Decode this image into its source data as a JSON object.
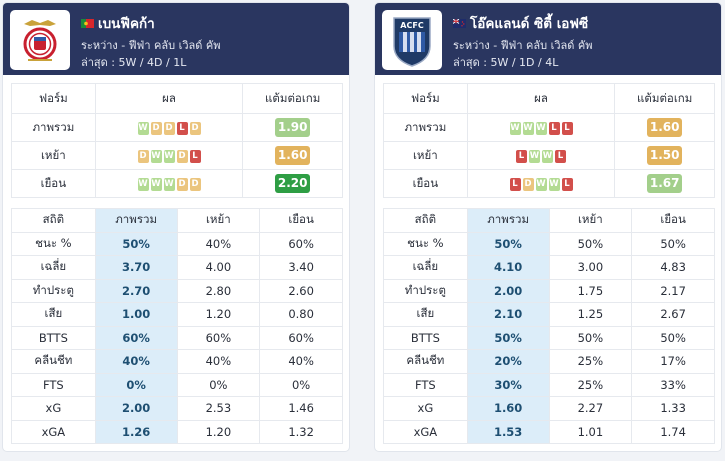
{
  "teams": [
    {
      "name": "เบนฟีคก้า",
      "flag": "portugal-flag",
      "competition": "ระหว่าง - ฟีฟ่า คลับ เวิลด์ คัพ",
      "recent": "ล่าสุด : 5W / 4D / 1L",
      "form_header": [
        "ฟอร์ม",
        "ผล",
        "แต้มต่อเกม"
      ],
      "form_rows": [
        {
          "label": "ภาพรวม",
          "results": [
            "W",
            "D",
            "D",
            "L",
            "D"
          ],
          "ppg": "1.90",
          "ppg_color": "#a3cf8b"
        },
        {
          "label": "เหย้า",
          "results": [
            "D",
            "W",
            "W",
            "D",
            "L"
          ],
          "ppg": "1.60",
          "ppg_color": "#e2b35d"
        },
        {
          "label": "เยือน",
          "results": [
            "W",
            "W",
            "W",
            "D",
            "D"
          ],
          "ppg": "2.20",
          "ppg_color": "#2e9e44"
        }
      ],
      "stats_header": [
        "สถิติ",
        "ภาพรวม",
        "เหย้า",
        "เยือน"
      ],
      "stats": [
        {
          "label": "ชนะ %",
          "overall": "50%",
          "home": "40%",
          "away": "60%"
        },
        {
          "label": "เฉลี่ย",
          "overall": "3.70",
          "home": "4.00",
          "away": "3.40"
        },
        {
          "label": "ทำประตู",
          "overall": "2.70",
          "home": "2.80",
          "away": "2.60"
        },
        {
          "label": "เสีย",
          "overall": "1.00",
          "home": "1.20",
          "away": "0.80"
        },
        {
          "label": "BTTS",
          "overall": "60%",
          "home": "60%",
          "away": "60%"
        },
        {
          "label": "คลีนชีท",
          "overall": "40%",
          "home": "40%",
          "away": "40%"
        },
        {
          "label": "FTS",
          "overall": "0%",
          "home": "0%",
          "away": "0%"
        },
        {
          "label": "xG",
          "overall": "2.00",
          "home": "2.53",
          "away": "1.46"
        },
        {
          "label": "xGA",
          "overall": "1.26",
          "home": "1.20",
          "away": "1.32"
        }
      ]
    },
    {
      "name": "โอ๊คแลนด์ ซิตี้ เอฟซี",
      "flag": "new-zealand-flag",
      "logo_text": "ACFC",
      "competition": "ระหว่าง - ฟีฟ่า คลับ เวิลด์ คัพ",
      "recent": "ล่าสุด : 5W / 1D / 4L",
      "form_header": [
        "ฟอร์ม",
        "ผล",
        "แต้มต่อเกม"
      ],
      "form_rows": [
        {
          "label": "ภาพรวม",
          "results": [
            "W",
            "W",
            "W",
            "L",
            "L"
          ],
          "ppg": "1.60",
          "ppg_color": "#e2b35d"
        },
        {
          "label": "เหย้า",
          "results": [
            "L",
            "W",
            "W",
            "L"
          ],
          "ppg": "1.50",
          "ppg_color": "#e2b35d"
        },
        {
          "label": "เยือน",
          "results": [
            "L",
            "D",
            "W",
            "W",
            "L"
          ],
          "ppg": "1.67",
          "ppg_color": "#a3cf8b"
        }
      ],
      "stats_header": [
        "สถิติ",
        "ภาพรวม",
        "เหย้า",
        "เยือน"
      ],
      "stats": [
        {
          "label": "ชนะ %",
          "overall": "50%",
          "home": "50%",
          "away": "50%"
        },
        {
          "label": "เฉลี่ย",
          "overall": "4.10",
          "home": "3.00",
          "away": "4.83"
        },
        {
          "label": "ทำประตู",
          "overall": "2.00",
          "home": "1.75",
          "away": "2.17"
        },
        {
          "label": "เสีย",
          "overall": "2.10",
          "home": "1.25",
          "away": "2.67"
        },
        {
          "label": "BTTS",
          "overall": "50%",
          "home": "50%",
          "away": "50%"
        },
        {
          "label": "คลีนชีท",
          "overall": "20%",
          "home": "25%",
          "away": "17%"
        },
        {
          "label": "FTS",
          "overall": "30%",
          "home": "25%",
          "away": "33%"
        },
        {
          "label": "xG",
          "overall": "1.60",
          "home": "2.27",
          "away": "1.33"
        },
        {
          "label": "xGA",
          "overall": "1.53",
          "home": "1.01",
          "away": "1.74"
        }
      ]
    }
  ]
}
